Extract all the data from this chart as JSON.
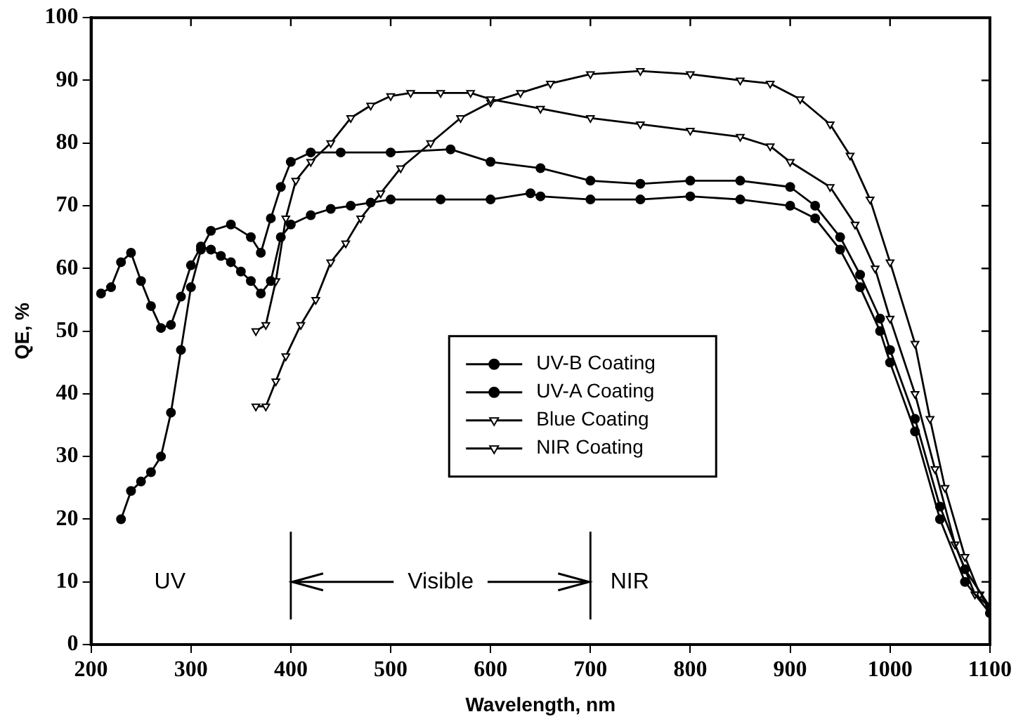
{
  "chart_data": {
    "type": "line",
    "xlabel": "Wavelength, nm",
    "ylabel": "QE, %",
    "xlim": [
      200,
      1100
    ],
    "xticks": [
      200,
      300,
      400,
      500,
      600,
      700,
      800,
      900,
      1000,
      1100
    ],
    "ylim": [
      0,
      100
    ],
    "yticks": [
      0,
      10,
      20,
      30,
      40,
      50,
      60,
      70,
      80,
      90,
      100
    ],
    "grid": false,
    "legend": "center",
    "line_style": "solid",
    "series": [
      {
        "name": "UV-B Coating",
        "color": "#000000",
        "marker": "circle",
        "x": [
          210,
          220,
          230,
          240,
          250,
          260,
          270,
          280,
          290,
          300,
          310,
          320,
          330,
          340,
          350,
          360,
          370,
          380,
          390,
          400,
          420,
          440,
          460,
          480,
          500,
          550,
          600,
          640,
          650,
          700,
          750,
          800,
          850,
          900,
          925,
          950,
          970,
          990,
          1000,
          1025,
          1050,
          1075,
          1100
        ],
        "values": [
          56,
          57,
          61,
          62.5,
          58,
          54,
          50.5,
          51,
          55.5,
          60.5,
          63.5,
          63,
          62,
          61,
          59.5,
          58,
          56,
          58,
          65,
          67,
          68.5,
          69.5,
          70,
          70.5,
          71,
          71,
          71,
          72,
          71.5,
          71,
          71,
          71.5,
          71,
          70,
          68,
          63,
          57,
          50,
          45,
          34,
          20,
          10,
          5
        ]
      },
      {
        "name": "UV-A Coating",
        "color": "#000000",
        "marker": "circle",
        "x": [
          230,
          240,
          250,
          260,
          270,
          280,
          290,
          300,
          310,
          320,
          340,
          360,
          370,
          380,
          390,
          400,
          420,
          450,
          500,
          560,
          600,
          650,
          700,
          750,
          800,
          850,
          900,
          925,
          950,
          970,
          990,
          1000,
          1025,
          1050,
          1075,
          1100
        ],
        "values": [
          20,
          24.5,
          26,
          27.5,
          30,
          37,
          47,
          57,
          63,
          66,
          67,
          65,
          62.5,
          68,
          73,
          77,
          78.5,
          78.5,
          78.5,
          79,
          77,
          76,
          74,
          73.5,
          74,
          74,
          73,
          70,
          65,
          59,
          52,
          47,
          36,
          22,
          12,
          6
        ]
      },
      {
        "name": "Blue Coating",
        "color": "#000000",
        "marker": "triangle",
        "x": [
          365,
          375,
          385,
          395,
          405,
          420,
          440,
          460,
          480,
          500,
          520,
          550,
          580,
          600,
          650,
          700,
          750,
          800,
          850,
          880,
          900,
          940,
          965,
          985,
          1000,
          1025,
          1045,
          1065,
          1085,
          1100
        ],
        "values": [
          50,
          51,
          58,
          68,
          74,
          77,
          80,
          84,
          86,
          87.5,
          88,
          88,
          88,
          87,
          85.5,
          84,
          83,
          82,
          81,
          79.5,
          77,
          73,
          67,
          60,
          52,
          40,
          28,
          16,
          8,
          6
        ]
      },
      {
        "name": "NIR Coating",
        "color": "#000000",
        "marker": "triangle",
        "x": [
          365,
          375,
          385,
          395,
          410,
          425,
          440,
          455,
          470,
          490,
          510,
          540,
          570,
          600,
          630,
          660,
          700,
          750,
          800,
          850,
          880,
          910,
          940,
          960,
          980,
          1000,
          1025,
          1040,
          1055,
          1075,
          1090,
          1100
        ],
        "values": [
          38,
          38,
          42,
          46,
          51,
          55,
          61,
          64,
          68,
          72,
          76,
          80,
          84,
          86.5,
          88,
          89.5,
          91,
          91.5,
          91,
          90,
          89.5,
          87,
          83,
          78,
          71,
          61,
          48,
          36,
          25,
          14,
          8,
          6
        ]
      }
    ],
    "ref_lines": [
      {
        "axis": "x",
        "value": 400
      },
      {
        "axis": "x",
        "value": 700
      }
    ],
    "annotations": [
      "UV",
      "Visible",
      "NIR"
    ]
  }
}
